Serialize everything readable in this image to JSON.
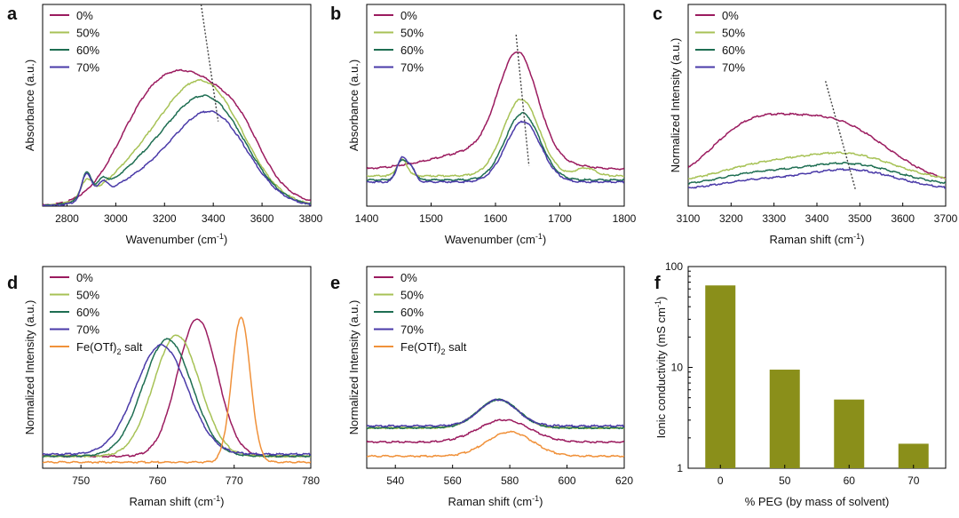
{
  "colors": {
    "0%": "#9b1b5f",
    "50%": "#a7c256",
    "60%": "#1e6e52",
    "70%": "#4a3aa8",
    "Fe(OTf)2 salt": "#f0913a",
    "bar": "#8a8f1a"
  },
  "chart_data": [
    {
      "id": "a",
      "panel_label": "a",
      "type": "line",
      "xlabel": "Wavenumber (cm",
      "xlabel_sup": "-1",
      "xlabel_end": ")",
      "ylabel": "Absorbance (a.u.)",
      "xlim": [
        2700,
        3800
      ],
      "ylim": [
        0,
        1
      ],
      "xticks": [
        2800,
        3000,
        3200,
        3400,
        3600,
        3800
      ],
      "legend": [
        "0%",
        "50%",
        "60%",
        "70%"
      ],
      "guide": [
        [
          3350,
          1.0
        ],
        [
          3420,
          0.42
        ]
      ],
      "series": [
        {
          "name": "0%",
          "peaks": [
            [
              3320,
              0.62,
              190
            ],
            [
              3100,
              0.2,
              120
            ],
            [
              3520,
              0.1,
              80
            ]
          ],
          "base": 0.0,
          "step": 0.12
        },
        {
          "name": "50%",
          "peaks": [
            [
              3390,
              0.5,
              150
            ],
            [
              3200,
              0.23,
              150
            ],
            [
              2880,
              0.08,
              22
            ],
            [
              3020,
              0.06,
              120
            ]
          ],
          "base": 0.0,
          "step": 0.02
        },
        {
          "name": "60%",
          "peaks": [
            [
              3400,
              0.45,
              145
            ],
            [
              3200,
              0.2,
              150
            ],
            [
              2880,
              0.12,
              20
            ],
            [
              2945,
              0.05,
              20
            ],
            [
              3020,
              0.05,
              120
            ]
          ],
          "base": 0.0,
          "step": 0.0
        },
        {
          "name": "70%",
          "peaks": [
            [
              3410,
              0.4,
              140
            ],
            [
              3210,
              0.15,
              150
            ],
            [
              2880,
              0.13,
              20
            ],
            [
              2945,
              0.06,
              20
            ],
            [
              3020,
              0.04,
              120
            ]
          ],
          "base": 0.0,
          "step": 0.0
        }
      ]
    },
    {
      "id": "b",
      "panel_label": "b",
      "type": "line",
      "xlabel": "Wavenumber (cm",
      "xlabel_sup": "-1",
      "xlabel_end": ")",
      "ylabel": "Absorbance (a.u.)",
      "xlim": [
        1400,
        1800
      ],
      "ylim": [
        0,
        1
      ],
      "xticks": [
        1400,
        1500,
        1600,
        1700,
        1800
      ],
      "legend": [
        "0%",
        "50%",
        "60%",
        "70%"
      ],
      "guide": [
        [
          1632,
          0.85
        ],
        [
          1652,
          0.2
        ]
      ],
      "series": [
        {
          "name": "0%",
          "peaks": [
            [
              1635,
              0.5,
              30
            ],
            [
              1590,
              0.1,
              80
            ]
          ],
          "base": 0.18,
          "step": 0.0
        },
        {
          "name": "50%",
          "peaks": [
            [
              1640,
              0.38,
              28
            ],
            [
              1740,
              0.04,
              15
            ],
            [
              1455,
              0.08,
              8
            ]
          ],
          "base": 0.15,
          "step": 0.0
        },
        {
          "name": "60%",
          "peaks": [
            [
              1642,
              0.33,
              27
            ],
            [
              1455,
              0.1,
              8
            ],
            [
              1470,
              0.05,
              6
            ]
          ],
          "base": 0.13,
          "step": 0.0
        },
        {
          "name": "70%",
          "peaks": [
            [
              1643,
              0.3,
              27
            ],
            [
              1455,
              0.12,
              8
            ],
            [
              1470,
              0.06,
              6
            ]
          ],
          "base": 0.12,
          "step": 0.0
        }
      ]
    },
    {
      "id": "c",
      "panel_label": "c",
      "type": "line",
      "xlabel": "Raman shift (cm",
      "xlabel_sup": "-1",
      "xlabel_end": ")",
      "ylabel": "Normalized Intensity (a.u.)",
      "xlim": [
        3100,
        3700
      ],
      "ylim": [
        0,
        1
      ],
      "xticks": [
        3100,
        3200,
        3300,
        3400,
        3500,
        3600,
        3700
      ],
      "legend": [
        "0%",
        "50%",
        "60%",
        "70%"
      ],
      "guide": [
        [
          3420,
          0.62
        ],
        [
          3490,
          0.08
        ]
      ],
      "series": [
        {
          "name": "0%",
          "peaks": [
            [
              3430,
              0.32,
              130
            ],
            [
              3230,
              0.22,
              90
            ]
          ],
          "base": 0.1,
          "step": 0.0
        },
        {
          "name": "50%",
          "peaks": [
            [
              3460,
              0.14,
              120
            ],
            [
              3250,
              0.06,
              90
            ]
          ],
          "base": 0.12,
          "step": 0.0
        },
        {
          "name": "60%",
          "peaks": [
            [
              3470,
              0.11,
              115
            ],
            [
              3250,
              0.05,
              90
            ]
          ],
          "base": 0.1,
          "step": 0.0
        },
        {
          "name": "70%",
          "peaks": [
            [
              3475,
              0.1,
              110
            ],
            [
              3250,
              0.04,
              90
            ]
          ],
          "base": 0.08,
          "step": 0.0
        }
      ]
    },
    {
      "id": "d",
      "panel_label": "d",
      "type": "line",
      "xlabel": "Raman shift (cm",
      "xlabel_sup": "-1",
      "xlabel_end": ")",
      "ylabel": "Normalized Intensity (a.u.)",
      "xlim": [
        745,
        780
      ],
      "ylim": [
        0,
        1
      ],
      "xticks": [
        750,
        760,
        770,
        780
      ],
      "legend": [
        "0%",
        "50%",
        "60%",
        "70%",
        "Fe(OTf)2 salt"
      ],
      "series": [
        {
          "name": "0%",
          "peaks": [
            [
              765.2,
              0.68,
              2.6
            ]
          ],
          "base": 0.06,
          "step": 0.0
        },
        {
          "name": "50%",
          "peaks": [
            [
              762.5,
              0.6,
              3.0
            ]
          ],
          "base": 0.06,
          "step": 0.0
        },
        {
          "name": "60%",
          "peaks": [
            [
              761.3,
              0.58,
              3.2
            ]
          ],
          "base": 0.06,
          "step": 0.0
        },
        {
          "name": "70%",
          "peaks": [
            [
              760.5,
              0.54,
              3.4
            ]
          ],
          "base": 0.07,
          "step": 0.0
        },
        {
          "name": "Fe(OTf)2 salt",
          "peaks": [
            [
              770.9,
              0.72,
              1.2
            ]
          ],
          "base": 0.03,
          "step": 0.0
        }
      ]
    },
    {
      "id": "e",
      "panel_label": "e",
      "type": "line",
      "xlabel": "Raman shift (cm",
      "xlabel_sup": "-1",
      "xlabel_end": ")",
      "ylabel": "Normalized Intensity (a.u.)",
      "xlim": [
        530,
        620
      ],
      "ylim": [
        0,
        1
      ],
      "xticks": [
        540,
        560,
        580,
        600,
        620
      ],
      "legend": [
        "0%",
        "50%",
        "60%",
        "70%",
        "Fe(OTf)2 salt"
      ],
      "series": [
        {
          "name": "0%",
          "peaks": [
            [
              578,
              0.11,
              9
            ]
          ],
          "base": 0.13,
          "step": 0.0
        },
        {
          "name": "50%",
          "peaks": [
            [
              576,
              0.14,
              7
            ]
          ],
          "base": 0.2,
          "step": 0.0
        },
        {
          "name": "60%",
          "peaks": [
            [
              576,
              0.14,
              7
            ]
          ],
          "base": 0.2,
          "step": 0.0
        },
        {
          "name": "70%",
          "peaks": [
            [
              576,
              0.13,
              6.5
            ]
          ],
          "base": 0.21,
          "step": 0.0
        },
        {
          "name": "Fe(OTf)2 salt",
          "peaks": [
            [
              580,
              0.12,
              8
            ]
          ],
          "base": 0.06,
          "step": 0.0
        }
      ]
    },
    {
      "id": "f",
      "panel_label": "f",
      "type": "bar",
      "xlabel": "% PEG (by mass of solvent)",
      "ylabel": "Ionic conductivity (mS cm",
      "ylabel_sup": "-1",
      "ylabel_end": ")",
      "categories": [
        "0",
        "50",
        "60",
        "70"
      ],
      "values": [
        65,
        9.5,
        4.8,
        1.75
      ],
      "yscale": "log",
      "ylim": [
        1,
        100
      ],
      "yticks": [
        1,
        10,
        100
      ]
    }
  ]
}
